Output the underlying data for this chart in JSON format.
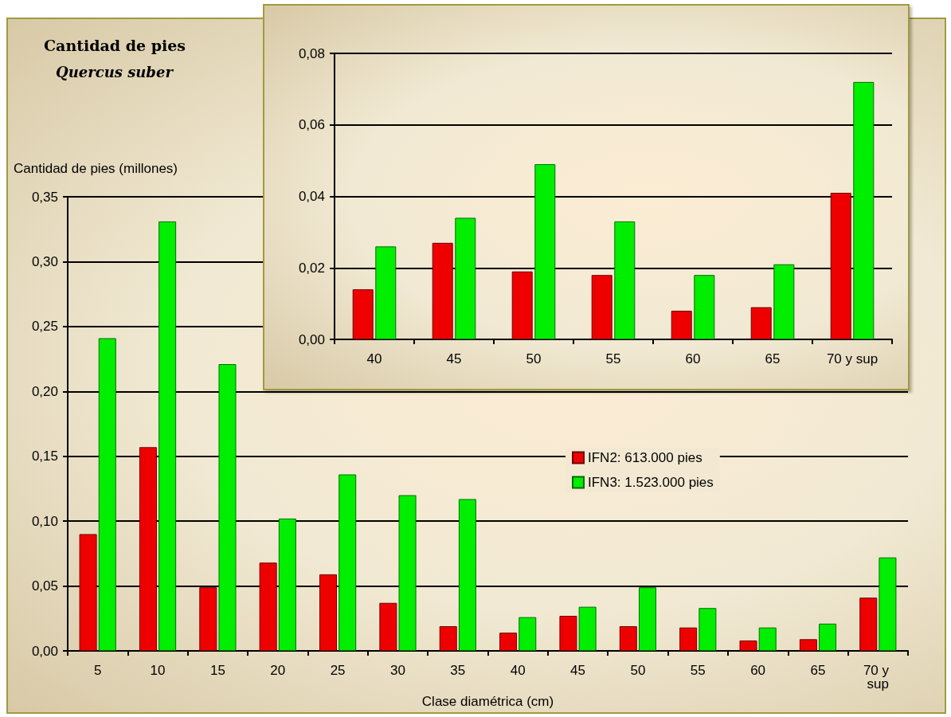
{
  "chart_data": [
    {
      "type": "bar",
      "title": "Cantidad de pies",
      "subtitle": "Quercus suber",
      "ylabel": "Cantidad de pies (millones)",
      "xlabel": "Clase diamétrica (cm)",
      "categories": [
        "5",
        "10",
        "15",
        "20",
        "25",
        "30",
        "35",
        "40",
        "45",
        "50",
        "55",
        "60",
        "65",
        "70 y sup"
      ],
      "series": [
        {
          "name": "IFN2: 613.000 pies",
          "color": "#ee0000",
          "values": [
            0.09,
            0.157,
            0.049,
            0.068,
            0.059,
            0.037,
            0.019,
            0.014,
            0.027,
            0.019,
            0.018,
            0.008,
            0.009,
            0.041
          ]
        },
        {
          "name": "IFN3: 1.523.000 pies",
          "color": "#00ee00",
          "values": [
            0.241,
            0.331,
            0.221,
            0.102,
            0.136,
            0.12,
            0.117,
            0.026,
            0.034,
            0.049,
            0.033,
            0.018,
            0.021,
            0.072
          ]
        }
      ],
      "ylim": [
        0,
        0.35
      ],
      "yticks": [
        {
          "value": 0,
          "label": "0,00"
        },
        {
          "value": 0.05,
          "label": "0,05"
        },
        {
          "value": 0.1,
          "label": "0,10"
        },
        {
          "value": 0.15,
          "label": "0,15"
        },
        {
          "value": 0.2,
          "label": "0,20"
        },
        {
          "value": 0.25,
          "label": "0,25"
        },
        {
          "value": 0.3,
          "label": "0,30"
        },
        {
          "value": 0.35,
          "label": "0,35"
        }
      ],
      "grid": "y",
      "legend": "right"
    },
    {
      "type": "bar",
      "categories": [
        "40",
        "45",
        "50",
        "55",
        "60",
        "65",
        "70 y sup"
      ],
      "series": [
        {
          "color": "#ee0000",
          "values": [
            0.014,
            0.027,
            0.019,
            0.018,
            0.008,
            0.009,
            0.041
          ]
        },
        {
          "color": "#00ee00",
          "values": [
            0.026,
            0.034,
            0.049,
            0.033,
            0.018,
            0.021,
            0.072
          ]
        }
      ],
      "ylim": [
        0,
        0.08
      ],
      "yticks": [
        {
          "value": 0,
          "label": "0,00"
        },
        {
          "value": 0.02,
          "label": "0,02"
        },
        {
          "value": 0.04,
          "label": "0,04"
        },
        {
          "value": 0.06,
          "label": "0,06"
        },
        {
          "value": 0.08,
          "label": "0,08"
        }
      ],
      "grid": "y"
    }
  ]
}
